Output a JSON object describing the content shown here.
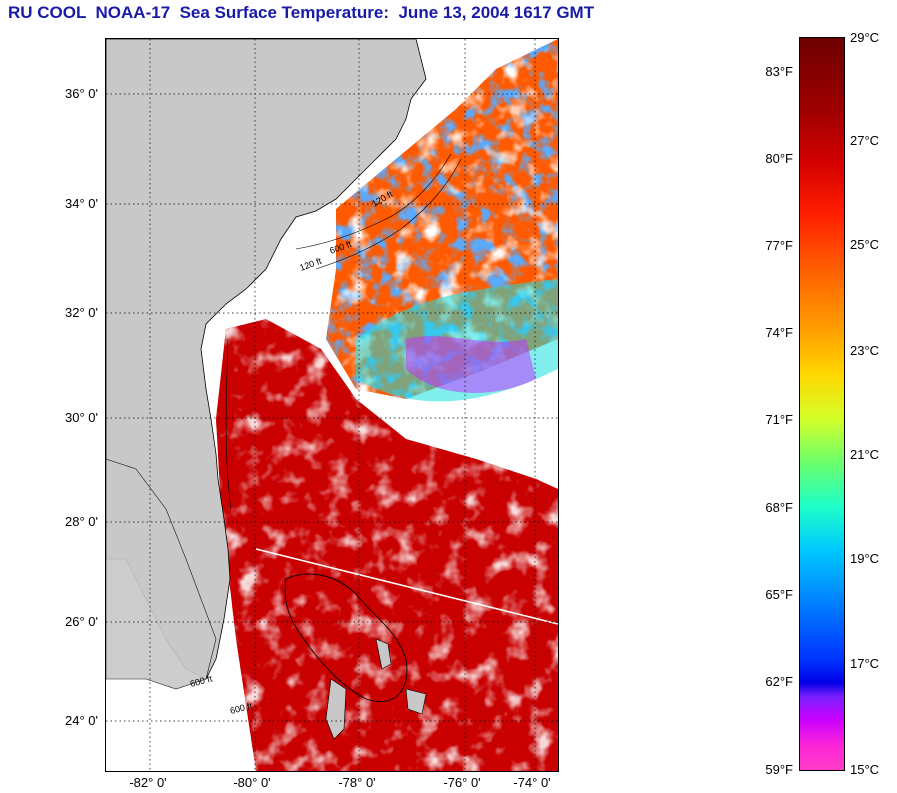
{
  "title": "RU COOL  NOAA-17  Sea Surface Temperature:  June 13, 2004 1617 GMT",
  "map": {
    "lat_labels": [
      "36° 0'",
      "34° 0'",
      "32° 0'",
      "30° 0'",
      "28° 0'",
      "26° 0'",
      "24° 0'"
    ],
    "lon_labels": [
      "-82° 0'",
      "-80° 0'",
      "-78° 0'",
      "-76° 0'",
      "-74° 0'"
    ],
    "isobath_labels": [
      "120 ft",
      "600 ft",
      "120 ft",
      "600 ft",
      "600 ft"
    ],
    "colors": {
      "land": "#c8c8c8",
      "cloud": "#ffffff",
      "grid": "#000000"
    }
  },
  "colorbar": {
    "fahrenheit_labels": [
      "83°F",
      "80°F",
      "77°F",
      "74°F",
      "71°F",
      "68°F",
      "65°F",
      "62°F",
      "59°F"
    ],
    "celsius_labels": [
      "29°C",
      "27°C",
      "25°C",
      "23°C",
      "21°C",
      "19°C",
      "17°C",
      "15°C"
    ]
  }
}
